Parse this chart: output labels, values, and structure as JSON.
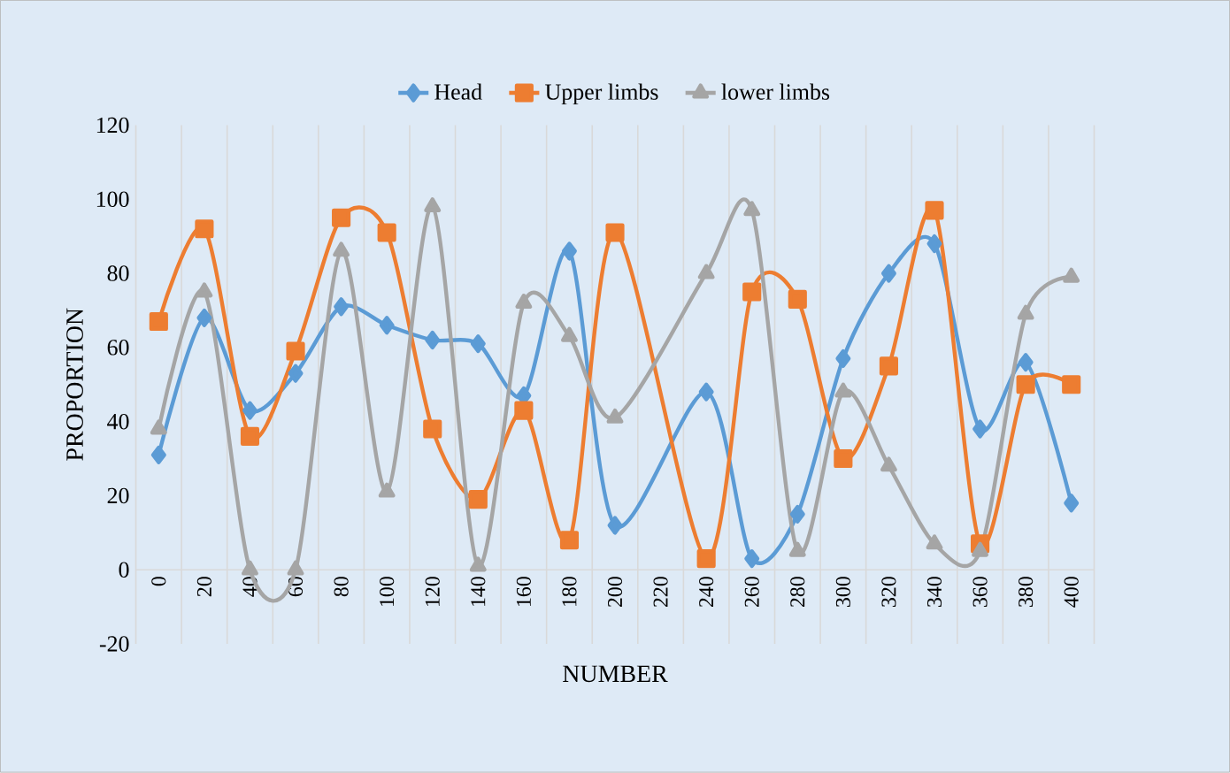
{
  "chart_data": {
    "type": "line",
    "xlabel": "NUMBER",
    "ylabel": "PROPORTION",
    "categories": [
      "0",
      "20",
      "40",
      "60",
      "80",
      "100",
      "120",
      "140",
      "160",
      "180",
      "200",
      "220",
      "240",
      "260",
      "280",
      "300",
      "320",
      "340",
      "360",
      "380",
      "400"
    ],
    "series": [
      {
        "name": "Head",
        "color": "#5b9bd5",
        "marker": "diamond",
        "values": [
          31,
          68,
          43,
          53,
          71,
          66,
          62,
          61,
          47,
          86,
          12,
          null,
          48,
          3,
          15,
          57,
          80,
          88,
          38,
          56,
          18
        ]
      },
      {
        "name": "Upper limbs",
        "color": "#ed7d31",
        "marker": "square",
        "values": [
          67,
          92,
          36,
          59,
          95,
          91,
          38,
          19,
          43,
          8,
          91,
          null,
          3,
          75,
          73,
          30,
          55,
          97,
          7,
          50,
          50
        ]
      },
      {
        "name": "lower limbs",
        "color": "#a5a5a5",
        "marker": "triangle",
        "values": [
          38,
          75,
          0,
          0,
          86,
          21,
          98,
          1,
          72,
          63,
          41,
          null,
          80,
          97,
          5,
          48,
          28,
          7,
          5,
          69,
          79
        ]
      }
    ],
    "ylim": [
      -20,
      120
    ],
    "yticks": [
      -20,
      0,
      20,
      40,
      60,
      80,
      100,
      120
    ],
    "grid": "x",
    "legend": "top",
    "line_style": "solid"
  }
}
